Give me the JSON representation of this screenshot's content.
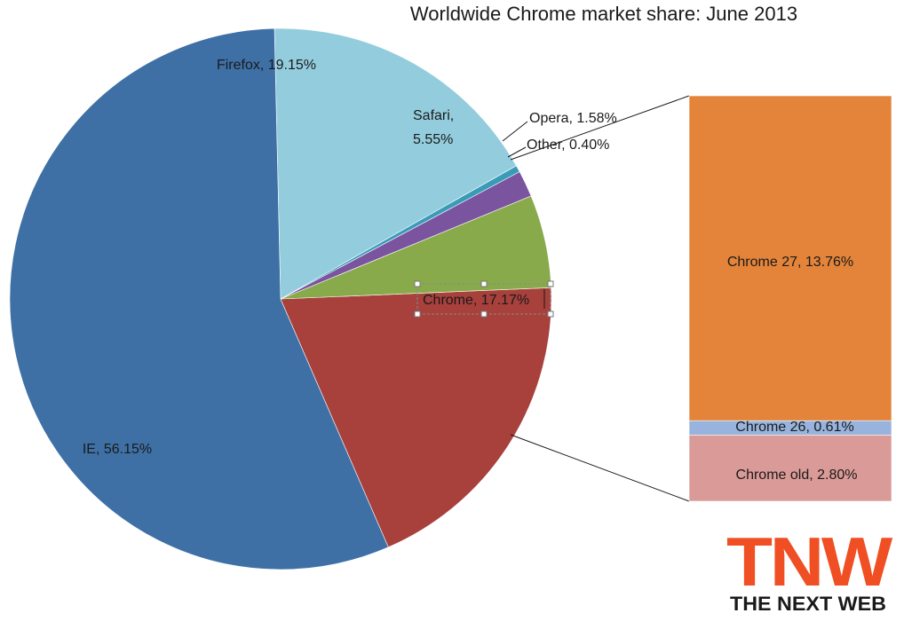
{
  "chart_data": [
    {
      "type": "pie",
      "title": "Worldwide Chrome market share: June 2013",
      "slices": [
        {
          "label": "Chrome",
          "value": 17.17,
          "display": "Chrome, 17.17%",
          "color": "#93CDDD"
        },
        {
          "label": "IE",
          "value": 56.15,
          "display": "IE, 56.15%",
          "color": "#3E70A6"
        },
        {
          "label": "Firefox",
          "value": 19.15,
          "display": "Firefox, 19.15%",
          "color": "#A8403C"
        },
        {
          "label": "Safari",
          "value": 5.55,
          "display_line1": "Safari,",
          "display_line2": "5.55%",
          "color": "#88AA4A"
        },
        {
          "label": "Opera",
          "value": 1.58,
          "display": "Opera, 1.58%",
          "color": "#7B54A0"
        },
        {
          "label": "Other",
          "value": 0.4,
          "display": "Other, 0.40%",
          "color": "#3A9BB8"
        }
      ]
    },
    {
      "type": "bar",
      "stacked": true,
      "segments": [
        {
          "label": "Chrome 27",
          "value": 13.76,
          "display": "Chrome 27, 13.76%",
          "color": "#E3843A"
        },
        {
          "label": "Chrome 26",
          "value": 0.61,
          "display": "Chrome 26, 0.61%",
          "color": "#98B3DD"
        },
        {
          "label": "Chrome old",
          "value": 2.8,
          "display": "Chrome old, 2.80%",
          "color": "#DA9A97"
        }
      ]
    }
  ],
  "logo": {
    "main": "TNW",
    "sub": "THE NEXT WEB",
    "color": "#F04E23",
    "sub_color": "#1a1a1a"
  }
}
